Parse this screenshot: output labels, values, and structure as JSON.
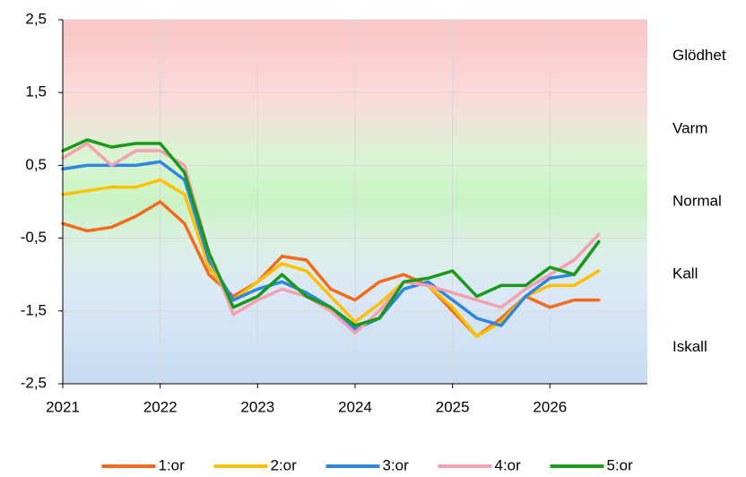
{
  "chart_data": {
    "type": "line",
    "x": [
      2021,
      2021.25,
      2021.5,
      2021.75,
      2022,
      2022.25,
      2022.5,
      2022.75,
      2023,
      2023.25,
      2023.5,
      2023.75,
      2024,
      2024.25,
      2024.5,
      2024.75,
      2025,
      2025.25,
      2025.5,
      2025.75,
      2026,
      2026.25,
      2026.5
    ],
    "xlim": [
      2021,
      2027
    ],
    "xticks": [
      2021,
      2022,
      2023,
      2024,
      2025,
      2026
    ],
    "ylim": [
      -2.5,
      2.5
    ],
    "yticks": [
      {
        "value": 2.5,
        "label": "2,5"
      },
      {
        "value": 1.5,
        "label": "1,5"
      },
      {
        "value": 0.5,
        "label": "0,5"
      },
      {
        "value": -0.5,
        "label": "-0,5"
      },
      {
        "value": -1.5,
        "label": "-1,5"
      },
      {
        "value": -2.5,
        "label": "-2,5"
      }
    ],
    "grid": true,
    "zones": [
      {
        "label": "Glödhet",
        "value": 2
      },
      {
        "label": "Varm",
        "value": 1
      },
      {
        "label": "Normal",
        "value": 0
      },
      {
        "label": "Kall",
        "value": -1
      },
      {
        "label": "Iskall",
        "value": -2
      }
    ],
    "legend": "bottom",
    "series": [
      {
        "name": "1:or",
        "color": "#f26b1d",
        "values": [
          -0.3,
          -0.4,
          -0.35,
          -0.2,
          0.0,
          -0.3,
          -1.0,
          -1.3,
          -1.1,
          -0.75,
          -0.8,
          -1.2,
          -1.35,
          -1.1,
          -1.0,
          -1.15,
          -1.5,
          -1.85,
          -1.6,
          -1.3,
          -1.45,
          -1.35,
          -1.35
        ]
      },
      {
        "name": "2:or",
        "color": "#ffc000",
        "values": [
          0.1,
          0.15,
          0.2,
          0.2,
          0.3,
          0.1,
          -0.9,
          -1.35,
          -1.1,
          -0.85,
          -0.95,
          -1.3,
          -1.65,
          -1.4,
          -1.1,
          -1.15,
          -1.45,
          -1.85,
          -1.65,
          -1.3,
          -1.15,
          -1.15,
          -0.95
        ]
      },
      {
        "name": "3:or",
        "color": "#2e86de",
        "values": [
          0.45,
          0.5,
          0.5,
          0.5,
          0.55,
          0.3,
          -0.8,
          -1.35,
          -1.2,
          -1.1,
          -1.25,
          -1.45,
          -1.75,
          -1.6,
          -1.2,
          -1.1,
          -1.35,
          -1.6,
          -1.7,
          -1.3,
          -1.05,
          -1.0,
          -0.55
        ]
      },
      {
        "name": "4:or",
        "color": "#f4a0b0",
        "values": [
          0.6,
          0.8,
          0.5,
          0.7,
          0.7,
          0.5,
          -0.7,
          -1.55,
          -1.35,
          -1.2,
          -1.3,
          -1.5,
          -1.8,
          -1.5,
          -1.1,
          -1.15,
          -1.25,
          -1.35,
          -1.45,
          -1.2,
          -1.0,
          -0.8,
          -0.45
        ]
      },
      {
        "name": "5:or",
        "color": "#1a9a1a",
        "values": [
          0.7,
          0.85,
          0.75,
          0.8,
          0.8,
          0.4,
          -0.7,
          -1.45,
          -1.3,
          -1.0,
          -1.3,
          -1.45,
          -1.7,
          -1.6,
          -1.1,
          -1.05,
          -0.95,
          -1.3,
          -1.15,
          -1.15,
          -0.9,
          -1.0,
          -0.55
        ]
      }
    ]
  }
}
